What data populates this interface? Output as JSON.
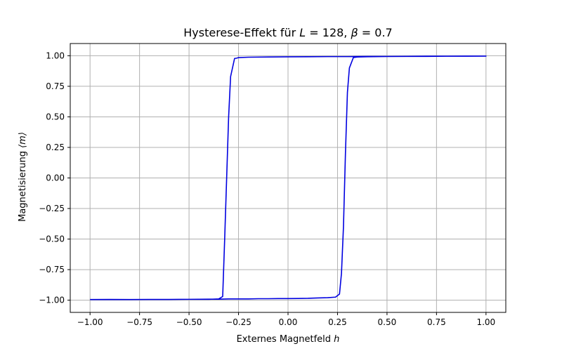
{
  "chart_data": {
    "type": "line",
    "title": "Hysterese-Effekt für L = 128, β = 0.7",
    "title_parts": {
      "prefix": "Hysterese-Effekt für ",
      "L_symbol": "L",
      "L_value": " = 128, ",
      "beta_symbol": "β",
      "beta_value": " = 0.7"
    },
    "xlabel": "Externes Magnetfeld h",
    "xlabel_parts": {
      "text": "Externes Magnetfeld ",
      "symbol": "h"
    },
    "ylabel": "Magnetisierung ⟨m⟩",
    "ylabel_parts": {
      "text": "Magnetisierung ",
      "symbol": "⟨m⟩"
    },
    "xlim": [
      -1.1,
      1.1
    ],
    "ylim": [
      -1.1,
      1.1
    ],
    "x_ticks": [
      -1.0,
      -0.75,
      -0.5,
      -0.25,
      0.0,
      0.25,
      0.5,
      0.75,
      1.0
    ],
    "x_tick_labels": [
      "−1.00",
      "−0.75",
      "−0.50",
      "−0.25",
      "0.00",
      "0.25",
      "0.50",
      "0.75",
      "1.00"
    ],
    "y_ticks": [
      -1.0,
      -0.75,
      -0.5,
      -0.25,
      0.0,
      0.25,
      0.5,
      0.75,
      1.0
    ],
    "y_tick_labels": [
      "−1.00",
      "−0.75",
      "−0.50",
      "−0.25",
      "0.00",
      "0.25",
      "0.50",
      "0.75",
      "1.00"
    ],
    "grid": true,
    "line_color": "#0000e0",
    "series": [
      {
        "points": [
          [
            -1.0,
            -0.995
          ],
          [
            -0.9,
            -0.994
          ],
          [
            -0.8,
            -0.995
          ],
          [
            -0.7,
            -0.994
          ],
          [
            -0.6,
            -0.994
          ],
          [
            -0.5,
            -0.993
          ],
          [
            -0.4,
            -0.992
          ],
          [
            -0.35,
            -0.992
          ],
          [
            -0.3,
            -0.99
          ],
          [
            -0.25,
            -0.99
          ],
          [
            -0.2,
            -0.99
          ],
          [
            -0.15,
            -0.988
          ],
          [
            -0.1,
            -0.988
          ],
          [
            -0.05,
            -0.987
          ],
          [
            0.0,
            -0.987
          ],
          [
            0.05,
            -0.986
          ],
          [
            0.1,
            -0.985
          ],
          [
            0.15,
            -0.982
          ],
          [
            0.2,
            -0.98
          ],
          [
            0.24,
            -0.975
          ],
          [
            0.26,
            -0.95
          ],
          [
            0.27,
            -0.78
          ],
          [
            0.28,
            -0.4
          ],
          [
            0.29,
            0.2
          ],
          [
            0.3,
            0.7
          ],
          [
            0.31,
            0.9
          ],
          [
            0.33,
            0.985
          ],
          [
            0.35,
            0.99
          ],
          [
            0.4,
            0.992
          ],
          [
            0.5,
            0.994
          ],
          [
            0.6,
            0.995
          ],
          [
            0.7,
            0.995
          ],
          [
            0.8,
            0.996
          ],
          [
            0.9,
            0.996
          ],
          [
            1.0,
            0.997
          ],
          [
            0.9,
            0.997
          ],
          [
            0.8,
            0.996
          ],
          [
            0.7,
            0.996
          ],
          [
            0.6,
            0.995
          ],
          [
            0.5,
            0.994
          ],
          [
            0.4,
            0.994
          ],
          [
            0.3,
            0.993
          ],
          [
            0.2,
            0.993
          ],
          [
            0.1,
            0.992
          ],
          [
            0.0,
            0.991
          ],
          [
            -0.1,
            0.99
          ],
          [
            -0.2,
            0.988
          ],
          [
            -0.25,
            0.985
          ],
          [
            -0.26,
            0.98
          ],
          [
            -0.27,
            0.978
          ],
          [
            -0.29,
            0.83
          ],
          [
            -0.3,
            0.5
          ],
          [
            -0.31,
            0.0
          ],
          [
            -0.32,
            -0.5
          ],
          [
            -0.33,
            -0.97
          ],
          [
            -0.35,
            -0.99
          ],
          [
            -0.4,
            -0.993
          ],
          [
            -0.5,
            -0.993
          ],
          [
            -0.6,
            -0.994
          ],
          [
            -0.7,
            -0.994
          ],
          [
            -0.8,
            -0.995
          ],
          [
            -0.9,
            -0.995
          ],
          [
            -1.0,
            -0.995
          ]
        ]
      }
    ]
  }
}
